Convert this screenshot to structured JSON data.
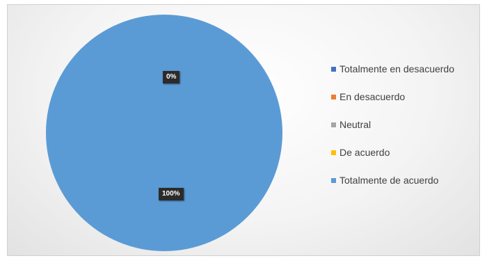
{
  "chart_data": {
    "type": "pie",
    "title": "",
    "categories": [
      "Totalmente en desacuerdo",
      "En desacuerdo",
      "Neutral",
      "De acuerdo",
      "Totalmente de acuerdo"
    ],
    "values": [
      0,
      0,
      0,
      0,
      100
    ],
    "colors": [
      "#4472C4",
      "#ED7D31",
      "#A5A5A5",
      "#FFC000",
      "#5B9BD5"
    ],
    "data_labels": [
      {
        "category": "Totalmente en desacuerdo",
        "text": "0%"
      },
      {
        "category": "Totalmente de acuerdo",
        "text": "100%"
      }
    ],
    "legend": "right"
  }
}
